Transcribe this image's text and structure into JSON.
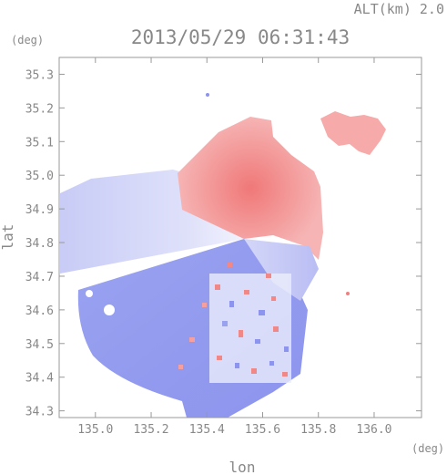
{
  "altitude_label": "ALT(km) 2.0",
  "timestamp": "2013/05/29 06:31:43",
  "chart_data": {
    "type": "heatmap",
    "title": "2013/05/29 06:31:43",
    "xlabel": "lon",
    "ylabel": "lat",
    "xunit": "(deg)",
    "yunit": "(deg)",
    "xlim": [
      134.87,
      136.17
    ],
    "ylim": [
      34.28,
      35.35
    ],
    "x_ticks": [
      135.0,
      135.2,
      135.4,
      135.6,
      135.8,
      136.0
    ],
    "y_ticks": [
      34.3,
      34.4,
      34.5,
      34.6,
      34.7,
      34.8,
      34.9,
      35.0,
      35.1,
      35.2,
      35.3
    ],
    "radar_center": [
      135.53,
      34.8
    ],
    "colors": {
      "positive": "#f08080",
      "negative": "#8c94ee",
      "frame": "#999999"
    },
    "grid": false,
    "legend": "none"
  }
}
